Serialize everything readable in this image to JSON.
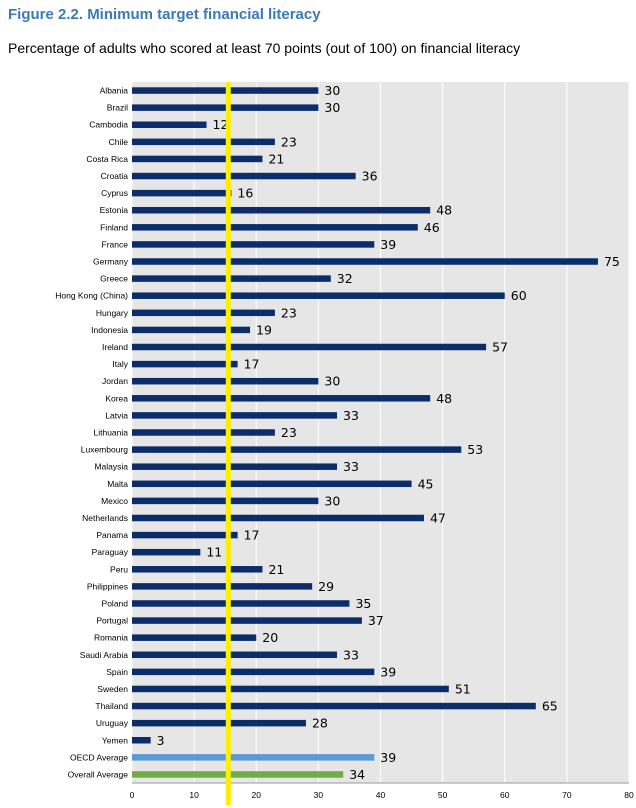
{
  "figure": {
    "title": "Figure 2.2. Minimum target financial literacy",
    "subtitle": "Percentage of adults who scored at least 70 points (out of 100) on financial literacy"
  },
  "chart_data": {
    "type": "bar",
    "orientation": "horizontal",
    "categories": [
      "Albania",
      "Brazil",
      "Cambodia",
      "Chile",
      "Costa Rica",
      "Croatia",
      "Cyprus",
      "Estonia",
      "Finland",
      "France",
      "Germany",
      "Greece",
      "Hong Kong (China)",
      "Hungary",
      "Indonesia",
      "Ireland",
      "Italy",
      "Jordan",
      "Korea",
      "Latvia",
      "Lithuania",
      "Luxembourg",
      "Malaysia",
      "Malta",
      "Mexico",
      "Netherlands",
      "Panama",
      "Paraguay",
      "Peru",
      "Philippines",
      "Poland",
      "Portugal",
      "Romania",
      "Saudi Arabia",
      "Spain",
      "Sweden",
      "Thailand",
      "Uruguay",
      "Yemen",
      "OECD Average",
      "Overall Average"
    ],
    "values": [
      30,
      30,
      12,
      23,
      21,
      36,
      16,
      48,
      46,
      39,
      75,
      32,
      60,
      23,
      19,
      57,
      17,
      30,
      48,
      33,
      23,
      53,
      33,
      45,
      30,
      47,
      17,
      11,
      21,
      29,
      35,
      37,
      20,
      33,
      39,
      51,
      65,
      28,
      3,
      39,
      34
    ],
    "data_labels": [
      "30",
      "30",
      "12",
      "23",
      "21",
      "36",
      "16",
      "48",
      "46",
      "39",
      "75",
      "32",
      "60",
      "23",
      "19",
      "57",
      "17",
      "30",
      "48",
      "33",
      "23",
      "53",
      "33",
      "45",
      "30",
      "47",
      "17",
      "11",
      "21",
      "29",
      "35",
      "37",
      "20",
      "33",
      "39",
      "51",
      "65",
      "28",
      "3",
      "39",
      "34"
    ],
    "bar_colors": {
      "default": "#0b2e6b",
      "OECD Average": "#5b9bd5",
      "Overall Average": "#70ad47"
    },
    "xlim": [
      0,
      80
    ],
    "x_ticks": [
      "0",
      "10",
      "20",
      "30",
      "40",
      "50",
      "60",
      "70",
      "80"
    ],
    "grid": true,
    "plot_background": "#e6e6e6",
    "reference_line": {
      "value": 15.5,
      "color": "#ffee00"
    }
  }
}
